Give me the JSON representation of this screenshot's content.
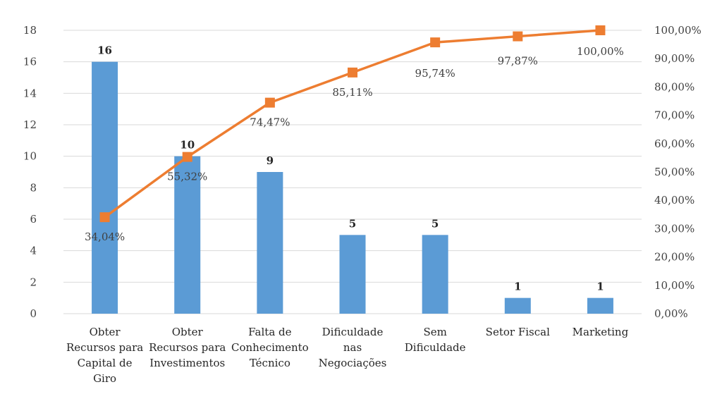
{
  "chart_data": {
    "type": "bar+line",
    "title": "",
    "categories": [
      [
        "Obter",
        "Recursos para",
        "Capital de",
        "Giro"
      ],
      [
        "Obter",
        "Recursos para",
        "Investimentos"
      ],
      [
        "Falta de",
        "Conhecimento",
        "Técnico"
      ],
      [
        "Dificuldade",
        "nas",
        "Negociações"
      ],
      [
        "Sem",
        "Dificuldade"
      ],
      [
        "Setor Fiscal"
      ],
      [
        "Marketing"
      ]
    ],
    "series": [
      {
        "type": "bar",
        "axis": "left",
        "values": [
          16,
          10,
          9,
          5,
          5,
          1,
          1
        ],
        "labels": [
          "16",
          "10",
          "9",
          "5",
          "5",
          "1",
          "1"
        ]
      },
      {
        "type": "line",
        "axis": "right",
        "values": [
          34.04,
          55.32,
          74.47,
          85.11,
          95.74,
          97.87,
          100.0
        ],
        "labels": [
          "34,04%",
          "55,32%",
          "74,47%",
          "85,11%",
          "95,74%",
          "97,87%",
          "100,00%"
        ]
      }
    ],
    "y_left": {
      "min": 0,
      "max": 18,
      "step": 2,
      "ticks": [
        "0",
        "2",
        "4",
        "6",
        "8",
        "10",
        "12",
        "14",
        "16",
        "18"
      ]
    },
    "y_right": {
      "min": 0,
      "max": 100,
      "step": 10,
      "ticks": [
        "0,00%",
        "10,00%",
        "20,00%",
        "30,00%",
        "40,00%",
        "50,00%",
        "60,00%",
        "70,00%",
        "80,00%",
        "90,00%",
        "100,00%"
      ]
    },
    "grid": true,
    "colors": {
      "bar": "#5b9bd5",
      "line": "#ed7d31",
      "grid": "#d9d9d9"
    }
  }
}
